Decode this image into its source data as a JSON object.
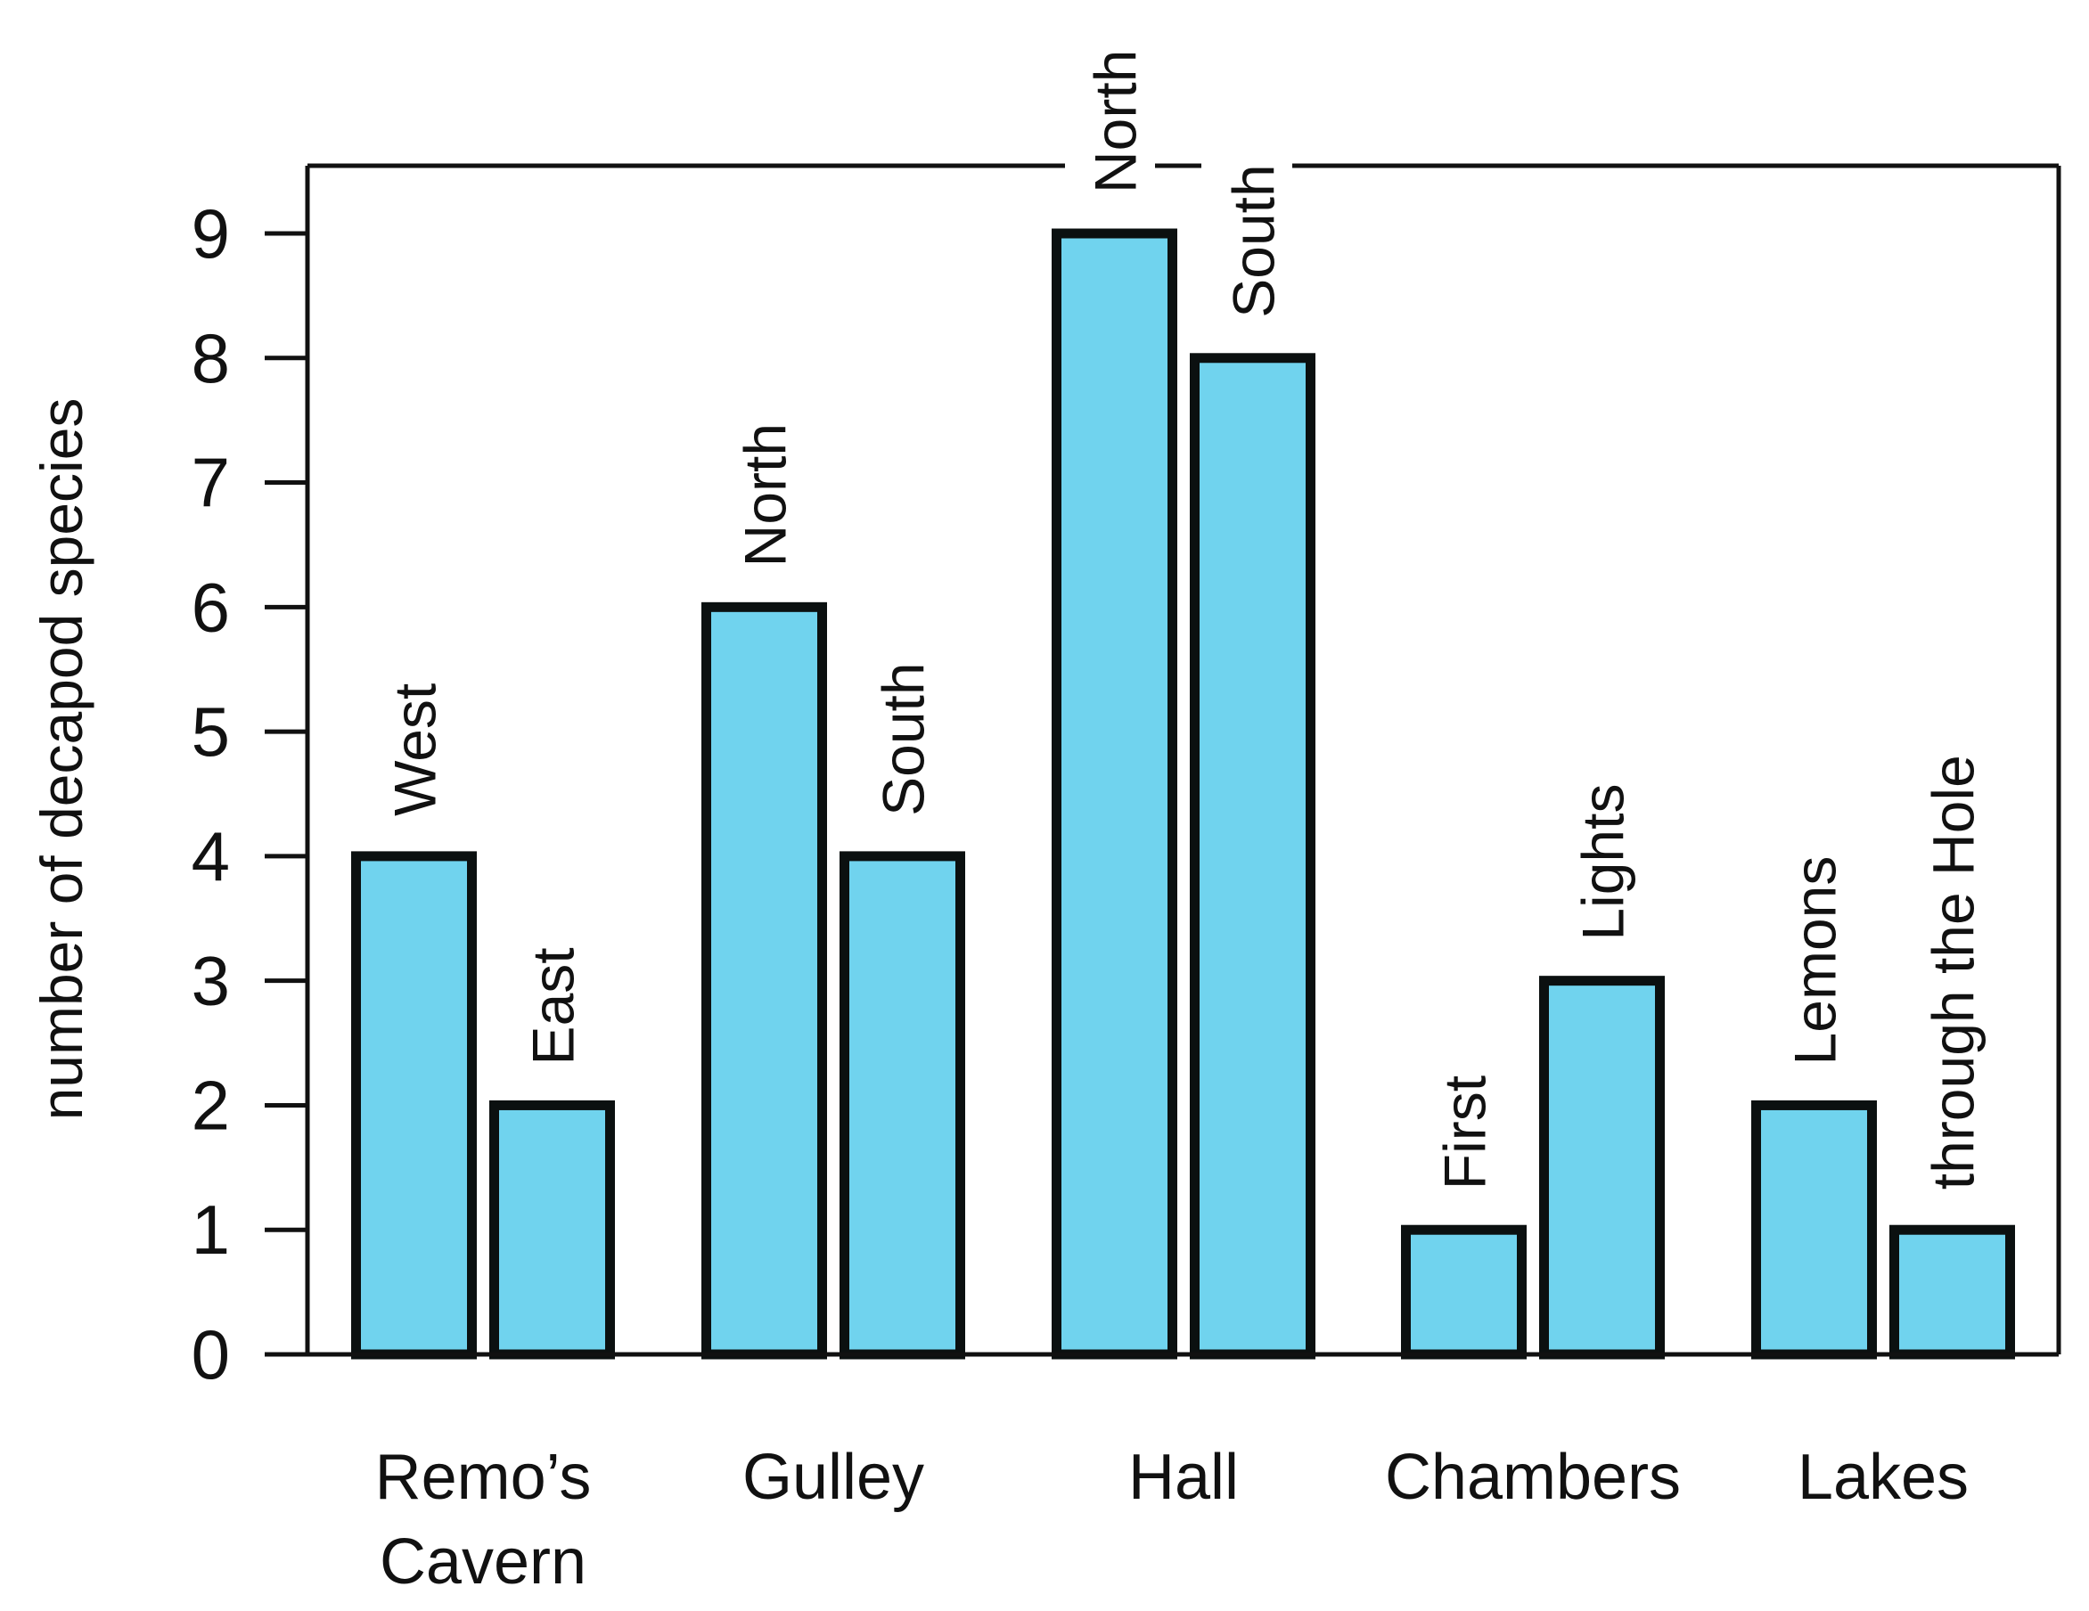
{
  "chart_data": {
    "type": "bar",
    "ylabel": "number of decapod species",
    "ylim": [
      0,
      9
    ],
    "yticks": [
      0,
      1,
      2,
      3,
      4,
      5,
      6,
      7,
      8,
      9
    ],
    "grid": false,
    "legend": "none",
    "bar_color": "#70d3ee",
    "edge_color": "#0b1010",
    "groups": [
      {
        "name": "Remo’s Cavern",
        "name_lines": [
          "Remo’s",
          "Cavern"
        ],
        "bars": [
          {
            "label": "West",
            "value": 4
          },
          {
            "label": "East",
            "value": 2
          }
        ]
      },
      {
        "name": "Gulley",
        "name_lines": [
          "Gulley"
        ],
        "bars": [
          {
            "label": "North",
            "value": 6
          },
          {
            "label": "South",
            "value": 4
          }
        ]
      },
      {
        "name": "Hall",
        "name_lines": [
          "Hall"
        ],
        "bars": [
          {
            "label": "North",
            "value": 9
          },
          {
            "label": "South",
            "value": 8
          }
        ]
      },
      {
        "name": "Chambers",
        "name_lines": [
          "Chambers"
        ],
        "bars": [
          {
            "label": "First",
            "value": 1
          },
          {
            "label": "Lights",
            "value": 3
          }
        ]
      },
      {
        "name": "Lakes",
        "name_lines": [
          "Lakes"
        ],
        "bars": [
          {
            "label": "Lemons",
            "value": 2
          },
          {
            "label": "through the Hole",
            "value": 1
          }
        ]
      }
    ]
  }
}
